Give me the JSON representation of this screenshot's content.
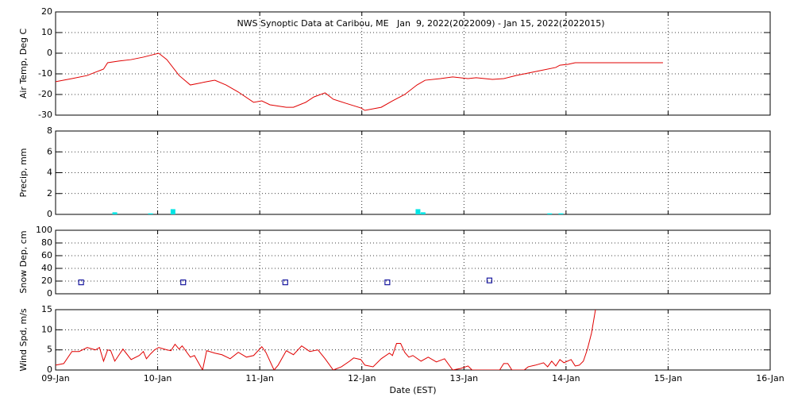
{
  "chart_data": [
    {
      "type": "line",
      "title": "NWS Synoptic Data at Caribou, ME   Jan  9, 2022(2022009) - Jan 15, 2022(2022015)",
      "ylabel": "Air Temp, Deg C",
      "color": "#e00000",
      "grid": true,
      "xlim": [
        0,
        7
      ],
      "ylim": [
        -30,
        20
      ],
      "yticks": [
        -30,
        -20,
        -10,
        0,
        10,
        20
      ],
      "x": [
        0,
        0.16,
        0.31,
        0.39,
        0.47,
        0.51,
        0.62,
        0.74,
        0.86,
        1.01,
        1.09,
        1.21,
        1.32,
        1.48,
        1.56,
        1.67,
        1.79,
        1.94,
        2.02,
        2.1,
        2.26,
        2.33,
        2.45,
        2.53,
        2.64,
        2.72,
        2.84,
        2.99,
        3.03,
        3.19,
        3.3,
        3.42,
        3.54,
        3.62,
        3.77,
        3.89,
        4.04,
        4.12,
        4.28,
        4.39,
        4.51,
        4.63,
        4.74,
        4.9,
        4.94,
        5.02,
        5.09,
        5.95
      ],
      "values": [
        -13.8,
        -12.3,
        -10.8,
        -9.2,
        -7.7,
        -4.6,
        -3.8,
        -3.1,
        -1.9,
        0,
        -3.1,
        -10.8,
        -15.4,
        -13.8,
        -13.1,
        -15.4,
        -18.8,
        -23.8,
        -23.1,
        -25,
        -26.2,
        -26.2,
        -23.8,
        -21.2,
        -19.2,
        -22.3,
        -24.2,
        -26.5,
        -27.7,
        -26.2,
        -23.1,
        -20,
        -15.4,
        -13.1,
        -12.3,
        -11.5,
        -12.3,
        -11.9,
        -12.7,
        -12.3,
        -10.8,
        -9.6,
        -8.5,
        -6.9,
        -5.8,
        -5.4,
        -4.6,
        -4.6
      ]
    },
    {
      "type": "bar",
      "ylabel": "Precip, mm",
      "color": "#00e5e5",
      "grid": true,
      "xlim": [
        0,
        7
      ],
      "ylim": [
        0,
        8
      ],
      "yticks": [
        0,
        2,
        4,
        6,
        8
      ],
      "x": [
        0.58,
        0.93,
        1.15,
        3.55,
        3.6,
        4.84,
        4.95
      ],
      "values": [
        0.2,
        0.1,
        0.5,
        0.5,
        0.2,
        0.1,
        0.1
      ]
    },
    {
      "type": "scatter",
      "ylabel": "Snow Dep, cm",
      "color": "#1a1aa0",
      "grid": true,
      "xlim": [
        0,
        7
      ],
      "ylim": [
        0,
        100
      ],
      "yticks": [
        0,
        20,
        40,
        60,
        80,
        100
      ],
      "x": [
        0.25,
        1.25,
        2.25,
        3.25,
        4.25
      ],
      "values": [
        18,
        18,
        18,
        18,
        21
      ]
    },
    {
      "type": "line",
      "ylabel": "Wind Spd, m/s",
      "xlabel": "Date (EST)",
      "color": "#e00000",
      "grid": true,
      "xlim": [
        0,
        7
      ],
      "ylim": [
        0,
        15
      ],
      "yticks": [
        0,
        5,
        10,
        15
      ],
      "xticks": [
        {
          "value": 0,
          "label": "09-Jan"
        },
        {
          "value": 1,
          "label": "10-Jan"
        },
        {
          "value": 2,
          "label": "11-Jan"
        },
        {
          "value": 3,
          "label": "12-Jan"
        },
        {
          "value": 4,
          "label": "13-Jan"
        },
        {
          "value": 5,
          "label": "14-Jan"
        },
        {
          "value": 6,
          "label": "15-Jan"
        },
        {
          "value": 7,
          "label": "16-Jan"
        }
      ],
      "x": [
        0,
        0.08,
        0.16,
        0.23,
        0.31,
        0.39,
        0.43,
        0.47,
        0.51,
        0.54,
        0.58,
        0.66,
        0.74,
        0.82,
        0.86,
        0.89,
        0.93,
        0.97,
        1.01,
        1.09,
        1.13,
        1.17,
        1.21,
        1.24,
        1.32,
        1.36,
        1.44,
        1.48,
        1.56,
        1.63,
        1.71,
        1.79,
        1.87,
        1.94,
        2.02,
        2.06,
        2.14,
        2.18,
        2.26,
        2.33,
        2.41,
        2.49,
        2.57,
        2.64,
        2.72,
        2.8,
        2.88,
        2.92,
        2.99,
        3.03,
        3.11,
        3.19,
        3.27,
        3.3,
        3.34,
        3.38,
        3.42,
        3.46,
        3.5,
        3.58,
        3.65,
        3.73,
        3.81,
        3.89,
        3.97,
        4.04,
        4.08,
        4.35,
        4.39,
        4.43,
        4.47,
        4.59,
        4.63,
        4.7,
        4.78,
        4.82,
        4.86,
        4.9,
        4.94,
        4.98,
        5.05,
        5.09,
        5.13,
        5.17,
        5.21,
        5.25,
        5.29,
        5.3
      ],
      "values": [
        1.2,
        1.6,
        4.6,
        4.6,
        5.6,
        5,
        5.6,
        2.2,
        5,
        4.8,
        2.2,
        5.2,
        2.6,
        3.6,
        4.6,
        2.8,
        4,
        5,
        5.6,
        5,
        4.8,
        6.4,
        5.2,
        6,
        3.2,
        3.6,
        0,
        4.8,
        4.2,
        3.8,
        2.8,
        4.4,
        3.2,
        3.6,
        5.8,
        4.4,
        0,
        1.2,
        4.8,
        3.8,
        6,
        4.6,
        5,
        2.8,
        0,
        0.8,
        2.2,
        3,
        2.6,
        1.2,
        0.8,
        2.8,
        4.2,
        3.6,
        6.6,
        6.6,
        4.4,
        3.2,
        3.6,
        2.2,
        3.2,
        2,
        2.8,
        0,
        0.4,
        1,
        0,
        0,
        1.6,
        1.6,
        0,
        0,
        0.8,
        1.2,
        1.8,
        0.8,
        2.2,
        1,
        2.6,
        1.8,
        2.6,
        1,
        1.2,
        2.2,
        5.2,
        9.2,
        15.2,
        15.6
      ]
    }
  ]
}
